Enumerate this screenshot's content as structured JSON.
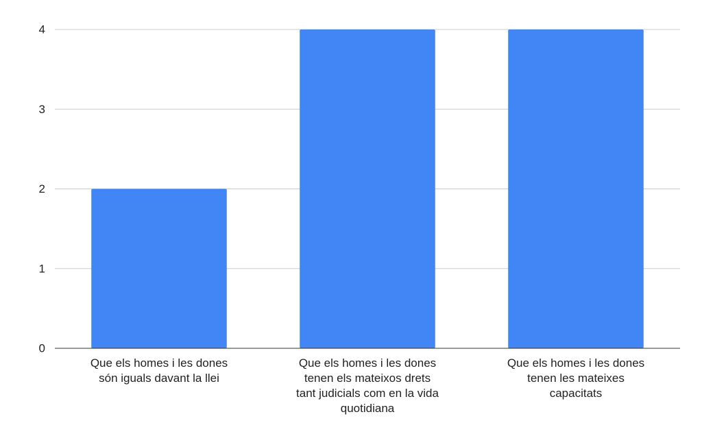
{
  "chart_data": {
    "type": "bar",
    "categories": [
      [
        "Que els homes i les dones",
        "són iguals davant la llei"
      ],
      [
        "Que els homes i les dones",
        "tenen els mateixos drets",
        "tant judicials com en la vida",
        "quotidiana"
      ],
      [
        "Que els homes i les dones",
        "tenen les mateixes",
        "capacitats"
      ]
    ],
    "values": [
      2,
      4,
      4
    ],
    "ylim": [
      0,
      4
    ],
    "yticks": [
      0,
      1,
      2,
      3,
      4
    ],
    "grid": true,
    "legend": "none",
    "colors": {
      "bar": "#4285f4",
      "grid": "#cccccc",
      "axis": "#333333"
    }
  }
}
